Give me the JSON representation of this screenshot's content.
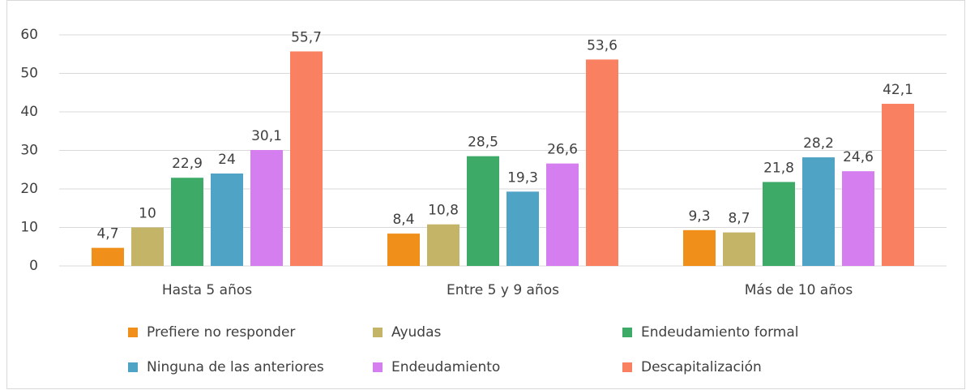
{
  "chart_data": {
    "type": "bar",
    "categories": [
      "Hasta 5 años",
      "Entre 5 y 9 años",
      "Más de 10 años"
    ],
    "ylim": [
      0,
      60
    ],
    "yticks": [
      0,
      10,
      20,
      30,
      40,
      50,
      60
    ],
    "grid": true,
    "series": [
      {
        "name": "Prefiere no responder",
        "color": "#f0901a",
        "values": [
          4.7,
          8.4,
          9.3
        ],
        "value_labels": [
          "4,7",
          "8,4",
          "9,3"
        ]
      },
      {
        "name": "Ayudas",
        "color": "#c4b468",
        "values": [
          10,
          10.8,
          8.7
        ],
        "value_labels": [
          "10",
          "10,8",
          "8,7"
        ]
      },
      {
        "name": "Endeudamiento formal",
        "color": "#3daa67",
        "values": [
          22.9,
          28.5,
          21.8
        ],
        "value_labels": [
          "22,9",
          "28,5",
          "21,8"
        ]
      },
      {
        "name": "Ninguna de las anteriores",
        "color": "#4fa3c4",
        "values": [
          24,
          19.3,
          28.2
        ],
        "value_labels": [
          "24",
          "19,3",
          "28,2"
        ]
      },
      {
        "name": "Endeudamiento",
        "color": "#d57ef0",
        "values": [
          30.1,
          26.6,
          24.6
        ],
        "value_labels": [
          "30,1",
          "26,6",
          "24,6"
        ]
      },
      {
        "name": "Descapitalización",
        "color": "#f98061",
        "values": [
          55.7,
          53.6,
          42.1
        ],
        "value_labels": [
          "55,7",
          "53,6",
          "42,1"
        ]
      }
    ]
  }
}
